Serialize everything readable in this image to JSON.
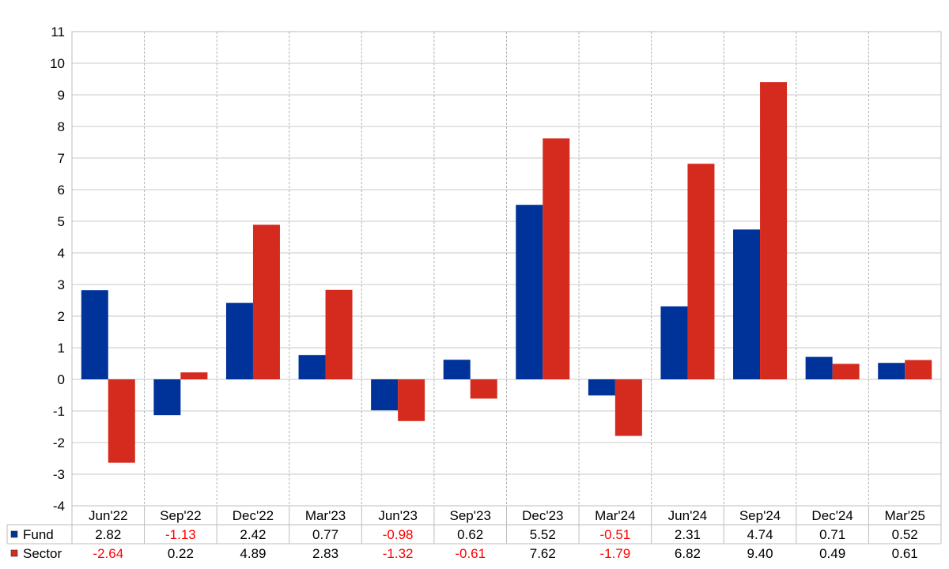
{
  "chart_data": {
    "type": "bar",
    "title": "",
    "xlabel": "",
    "ylabel": "",
    "categories": [
      "Jun'22",
      "Sep'22",
      "Dec'22",
      "Mar'23",
      "Jun'23",
      "Sep'23",
      "Dec'23",
      "Mar'24",
      "Jun'24",
      "Sep'24",
      "Dec'24",
      "Mar'25"
    ],
    "series": [
      {
        "name": "Fund",
        "color": "#003399",
        "values": [
          2.82,
          -1.13,
          2.42,
          0.77,
          -0.98,
          0.62,
          5.52,
          -0.51,
          2.31,
          4.74,
          0.71,
          0.52
        ],
        "labels": [
          "2.82",
          "-1.13",
          "2.42",
          "0.77",
          "-0.98",
          "0.62",
          "5.52",
          "-0.51",
          "2.31",
          "4.74",
          "0.71",
          "0.52"
        ]
      },
      {
        "name": "Sector",
        "color": "#d52b1e",
        "values": [
          -2.64,
          0.22,
          4.89,
          2.83,
          -1.32,
          -0.61,
          7.62,
          -1.79,
          6.82,
          9.4,
          0.49,
          0.61
        ],
        "labels": [
          "-2.64",
          "0.22",
          "4.89",
          "2.83",
          "-1.32",
          "-0.61",
          "7.62",
          "-1.79",
          "6.82",
          "9.40",
          "0.49",
          "0.61"
        ]
      }
    ],
    "ylim": [
      -4,
      11
    ],
    "yticks": [
      "11",
      "10",
      "9",
      "8",
      "7",
      "6",
      "5",
      "4",
      "3",
      "2",
      "1",
      "0",
      "-1",
      "-2",
      "-3",
      "-4"
    ],
    "grid": true,
    "legend": "data-table-below",
    "negative_label_color": "#ff0000"
  }
}
